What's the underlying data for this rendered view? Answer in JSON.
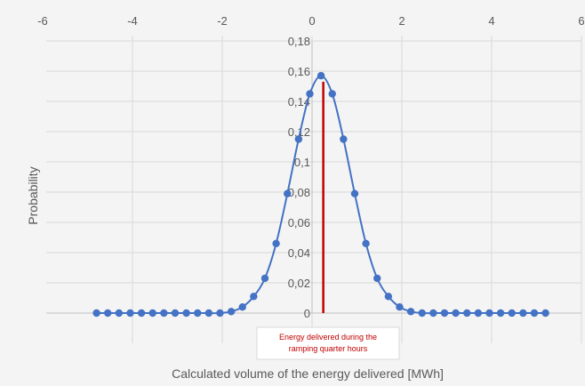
{
  "chart_data": {
    "type": "scatter",
    "xlabel": "Calculated volume of the energy delivered [MWh]",
    "ylabel": "Probability",
    "xlim": [
      -6,
      6
    ],
    "ylim": [
      0,
      0.18
    ],
    "x_ticks": [
      "-6",
      "-4",
      "-2",
      "0",
      "2",
      "4",
      "6"
    ],
    "x_tick_values": [
      -6,
      -4,
      -2,
      0,
      2,
      4,
      6
    ],
    "y_ticks": [
      "0",
      "0,02",
      "0,04",
      "0,06",
      "0,08",
      "0,1",
      "0,12",
      "0,14",
      "0,16",
      "0,18"
    ],
    "y_tick_values": [
      0,
      0.02,
      0.04,
      0.06,
      0.08,
      0.1,
      0.12,
      0.14,
      0.16,
      0.18
    ],
    "grid": true,
    "series": [
      {
        "color": "#4472c4",
        "x": [
          -4.8,
          -4.55,
          -4.3,
          -4.05,
          -3.8,
          -3.55,
          -3.3,
          -3.05,
          -2.8,
          -2.55,
          -2.3,
          -2.05,
          -1.8,
          -1.55,
          -1.3,
          -1.05,
          -0.8,
          -0.55,
          -0.3,
          -0.05,
          0.2,
          0.45,
          0.7,
          0.95,
          1.2,
          1.45,
          1.7,
          1.95,
          2.2,
          2.45,
          2.7,
          2.95,
          3.2,
          3.45,
          3.7,
          3.95,
          4.2,
          4.45,
          4.7,
          4.95,
          5.2
        ],
        "y": [
          0,
          0,
          0,
          0,
          0,
          0,
          0,
          0,
          0,
          0,
          0,
          0,
          0.001,
          0.004,
          0.011,
          0.023,
          0.046,
          0.079,
          0.115,
          0.145,
          0.157,
          0.145,
          0.115,
          0.079,
          0.046,
          0.023,
          0.011,
          0.004,
          0.001,
          0,
          0,
          0,
          0,
          0,
          0,
          0,
          0,
          0,
          0,
          0,
          0
        ]
      }
    ],
    "marker_line": {
      "x": 0.25,
      "y_max": 0.153,
      "color": "#c00000"
    },
    "annotation": {
      "line1": "Energy delivered during the",
      "line2": "ramping quarter hours"
    }
  }
}
